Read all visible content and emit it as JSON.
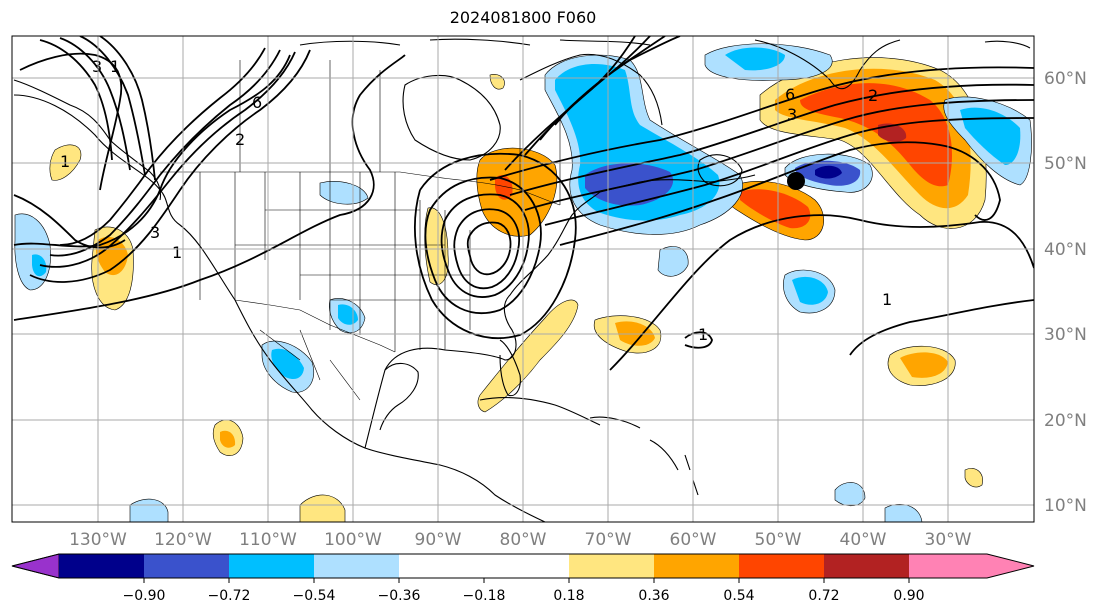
{
  "title": "2024081800 F060",
  "lon_labels": [
    "130°W",
    "120°W",
    "110°W",
    "100°W",
    "90°W",
    "80°W",
    "70°W",
    "60°W",
    "50°W",
    "40°W",
    "30°W"
  ],
  "lat_labels": [
    "60°N",
    "50°N",
    "40°N",
    "30°N",
    "20°N",
    "10°N"
  ],
  "contour_labels": [
    "1",
    "2",
    "3",
    "6",
    "1",
    "2",
    "3",
    "6",
    "1",
    "1",
    "1",
    "3"
  ],
  "colorbar": {
    "ticks": [
      "−0.90",
      "−0.72",
      "−0.54",
      "−0.36",
      "−0.18",
      "0.18",
      "0.36",
      "0.54",
      "0.72",
      "0.90"
    ],
    "colors": {
      "under": "#9932cc",
      "bins": [
        "#00008b",
        "#3a52cc",
        "#00bfff",
        "#aee0ff",
        "#ffffff",
        "#ffe680",
        "#ffa500",
        "#ff4500",
        "#b22222"
      ],
      "over": "#ff82b4"
    }
  },
  "marker_color": "#000000"
}
